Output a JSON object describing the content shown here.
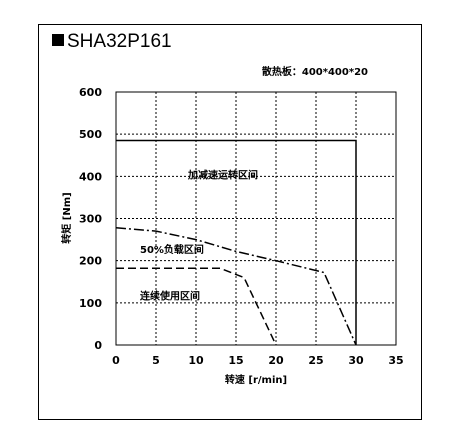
{
  "header": {
    "title": "SHA32P161"
  },
  "chart_data": {
    "type": "line",
    "title": "SHA32P161",
    "subtitle": "散热板：400*400*20",
    "xlabel": "转速 [r/min]",
    "ylabel": "转矩 [Nm]",
    "xlim": [
      0,
      35
    ],
    "ylim": [
      0,
      600
    ],
    "xticks": [
      0,
      5,
      10,
      15,
      20,
      25,
      30,
      35
    ],
    "yticks": [
      0,
      100,
      200,
      300,
      400,
      500,
      600
    ],
    "grid": true,
    "series": [
      {
        "name": "加减速运转区间",
        "style": "solid",
        "x": [
          0,
          30,
          30
        ],
        "y": [
          485,
          485,
          0
        ]
      },
      {
        "name": "50%负载区间",
        "style": "dashdot",
        "x": [
          0,
          5,
          10,
          15,
          20,
          26,
          30
        ],
        "y": [
          278,
          270,
          250,
          222,
          200,
          172,
          0
        ]
      },
      {
        "name": "连续使用区间",
        "style": "dashed",
        "x": [
          0,
          13,
          16,
          20
        ],
        "y": [
          182,
          182,
          160,
          0
        ]
      }
    ],
    "annotations": [
      {
        "text": "加减速运转区间",
        "x": 9,
        "y": 395
      },
      {
        "text": "50%负载区间",
        "x": 3,
        "y": 218
      },
      {
        "text": "连续使用区间",
        "x": 3,
        "y": 108
      }
    ]
  }
}
